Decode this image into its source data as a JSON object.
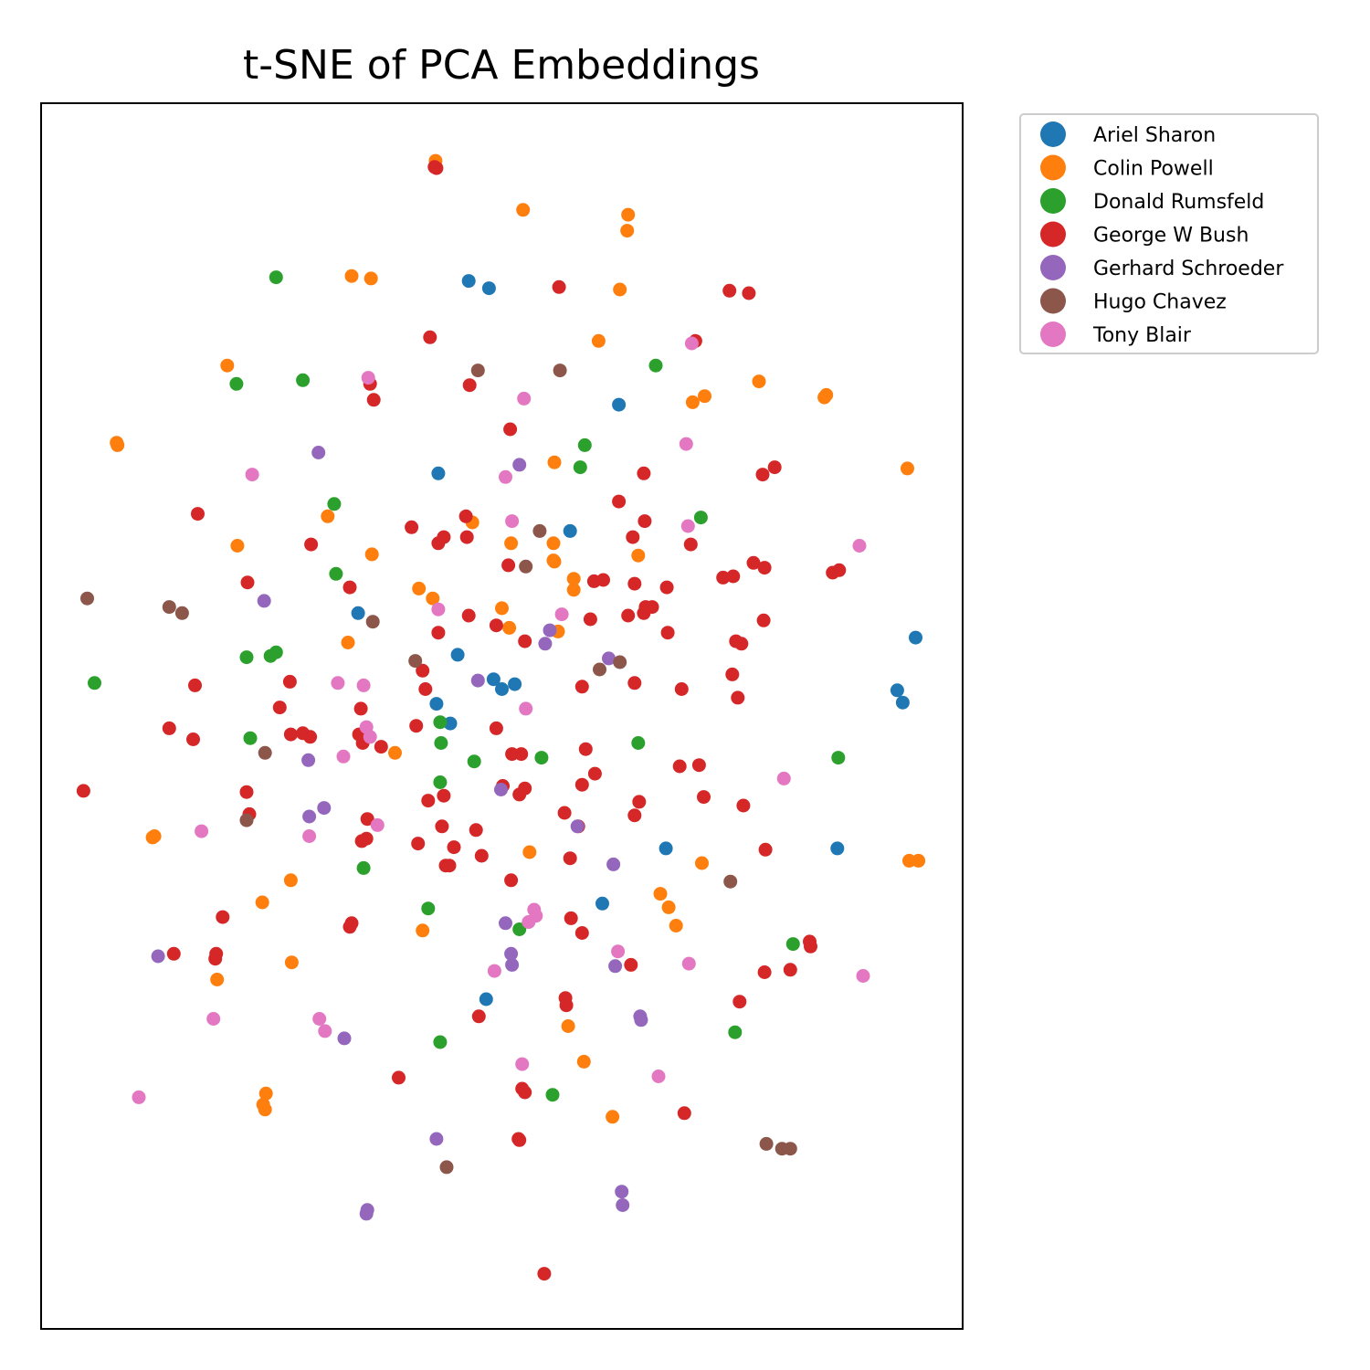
{
  "chart_data": {
    "type": "scatter",
    "title": "t-SNE of PCA Embeddings",
    "xlabel": "",
    "ylabel": "",
    "xlim": [
      0,
      1000
    ],
    "ylim": [
      0,
      1000
    ],
    "ticks_visible": false,
    "grid": false,
    "legend_position": "outside-top-right",
    "series": [
      {
        "name": "Ariel Sharon",
        "color": "#1f77b4",
        "points": [
          [
            464,
            855
          ],
          [
            486,
            849
          ],
          [
            627,
            754
          ],
          [
            431,
            698
          ],
          [
            574,
            651
          ],
          [
            344,
            584
          ],
          [
            949,
            564
          ],
          [
            452,
            550
          ],
          [
            491,
            530
          ],
          [
            514,
            526
          ],
          [
            500,
            522
          ],
          [
            429,
            510
          ],
          [
            444,
            494
          ],
          [
            929,
            521
          ],
          [
            935,
            511
          ],
          [
            678,
            392
          ],
          [
            864,
            392
          ],
          [
            609,
            347
          ],
          [
            483,
            269
          ]
        ]
      },
      {
        "name": "Colin Powell",
        "color": "#ff7f0e",
        "points": [
          [
            428,
            953
          ],
          [
            523,
            913
          ],
          [
            637,
            909
          ],
          [
            636,
            896
          ],
          [
            337,
            859
          ],
          [
            358,
            857
          ],
          [
            628,
            848
          ],
          [
            605,
            806
          ],
          [
            202,
            786
          ],
          [
            779,
            773
          ],
          [
            850,
            760
          ],
          [
            852,
            762
          ],
          [
            720,
            761
          ],
          [
            707,
            756
          ],
          [
            82,
            723
          ],
          [
            83,
            721
          ],
          [
            557,
            707
          ],
          [
            940,
            702
          ],
          [
            311,
            663
          ],
          [
            468,
            658
          ],
          [
            213,
            639
          ],
          [
            359,
            632
          ],
          [
            510,
            641
          ],
          [
            556,
            641
          ],
          [
            556,
            627
          ],
          [
            557,
            626
          ],
          [
            648,
            631
          ],
          [
            578,
            612
          ],
          [
            578,
            603
          ],
          [
            410,
            604
          ],
          [
            425,
            596
          ],
          [
            500,
            588
          ],
          [
            508,
            572
          ],
          [
            561,
            569
          ],
          [
            333,
            560
          ],
          [
            384,
            470
          ],
          [
            530,
            389
          ],
          [
            240,
            348
          ],
          [
            123,
            402
          ],
          [
            121,
            401
          ],
          [
            942,
            382
          ],
          [
            952,
            382
          ],
          [
            717,
            380
          ],
          [
            271,
            366
          ],
          [
            414,
            325
          ],
          [
            672,
            355
          ],
          [
            681,
            344
          ],
          [
            689,
            329
          ],
          [
            272,
            299
          ],
          [
            191,
            285
          ],
          [
            572,
            247
          ],
          [
            589,
            218
          ],
          [
            244,
            192
          ],
          [
            241,
            183
          ],
          [
            243,
            179
          ],
          [
            620,
            173
          ]
        ]
      },
      {
        "name": "Donald Rumsfeld",
        "color": "#2ca02c",
        "points": [
          [
            255,
            858
          ],
          [
            284,
            774
          ],
          [
            212,
            771
          ],
          [
            667,
            786
          ],
          [
            585,
            703
          ],
          [
            590,
            721
          ],
          [
            716,
            662
          ],
          [
            318,
            673
          ],
          [
            320,
            616
          ],
          [
            223,
            548
          ],
          [
            249,
            549
          ],
          [
            255,
            552
          ],
          [
            58,
            527
          ],
          [
            433,
            495
          ],
          [
            434,
            478
          ],
          [
            227,
            482
          ],
          [
            543,
            466
          ],
          [
            648,
            478
          ],
          [
            865,
            466
          ],
          [
            433,
            446
          ],
          [
            470,
            463
          ],
          [
            350,
            376
          ],
          [
            420,
            343
          ],
          [
            519,
            326
          ],
          [
            816,
            314
          ],
          [
            753,
            242
          ],
          [
            433,
            234
          ],
          [
            555,
            191
          ]
        ]
      },
      {
        "name": "George W Bush",
        "color": "#d62728",
        "points": [
          [
            427,
            948
          ],
          [
            562,
            850
          ],
          [
            747,
            847
          ],
          [
            768,
            845
          ],
          [
            710,
            806
          ],
          [
            422,
            809
          ],
          [
            357,
            771
          ],
          [
            465,
            770
          ],
          [
            509,
            734
          ],
          [
            361,
            758
          ],
          [
            654,
            698
          ],
          [
            783,
            697
          ],
          [
            796,
            703
          ],
          [
            170,
            665
          ],
          [
            293,
            640
          ],
          [
            402,
            654
          ],
          [
            461,
            663
          ],
          [
            437,
            646
          ],
          [
            462,
            646
          ],
          [
            627,
            675
          ],
          [
            655,
            659
          ],
          [
            642,
            646
          ],
          [
            431,
            641
          ],
          [
            507,
            623
          ],
          [
            610,
            611
          ],
          [
            600,
            610
          ],
          [
            644,
            608
          ],
          [
            679,
            605
          ],
          [
            751,
            614
          ],
          [
            773,
            625
          ],
          [
            859,
            617
          ],
          [
            866,
            619
          ],
          [
            705,
            640
          ],
          [
            740,
            613
          ],
          [
            785,
            621
          ],
          [
            224,
            609
          ],
          [
            335,
            605
          ],
          [
            596,
            579
          ],
          [
            637,
            582
          ],
          [
            663,
            589
          ],
          [
            680,
            568
          ],
          [
            656,
            589
          ],
          [
            654,
            584
          ],
          [
            784,
            578
          ],
          [
            754,
            561
          ],
          [
            494,
            574
          ],
          [
            525,
            561
          ],
          [
            464,
            582
          ],
          [
            431,
            568
          ],
          [
            414,
            537
          ],
          [
            167,
            525
          ],
          [
            417,
            522
          ],
          [
            587,
            524
          ],
          [
            695,
            522
          ],
          [
            760,
            559
          ],
          [
            750,
            534
          ],
          [
            756,
            515
          ],
          [
            644,
            527
          ],
          [
            270,
            528
          ],
          [
            259,
            507
          ],
          [
            347,
            506
          ],
          [
            271,
            485
          ],
          [
            292,
            483
          ],
          [
            284,
            486
          ],
          [
            165,
            481
          ],
          [
            139,
            490
          ],
          [
            345,
            485
          ],
          [
            349,
            478
          ],
          [
            369,
            475
          ],
          [
            407,
            492
          ],
          [
            494,
            490
          ],
          [
            591,
            473
          ],
          [
            693,
            459
          ],
          [
            714,
            460
          ],
          [
            587,
            444
          ],
          [
            601,
            453
          ],
          [
            501,
            443
          ],
          [
            511,
            469
          ],
          [
            521,
            469
          ],
          [
            525,
            441
          ],
          [
            519,
            436
          ],
          [
            46,
            439
          ],
          [
            223,
            438
          ],
          [
            420,
            431
          ],
          [
            437,
            435
          ],
          [
            649,
            430
          ],
          [
            719,
            434
          ],
          [
            762,
            427
          ],
          [
            354,
            416
          ],
          [
            644,
            419
          ],
          [
            568,
            421
          ],
          [
            226,
            420
          ],
          [
            348,
            398
          ],
          [
            353,
            400
          ],
          [
            435,
            410
          ],
          [
            472,
            407
          ],
          [
            409,
            396
          ],
          [
            583,
            410
          ],
          [
            448,
            393
          ],
          [
            574,
            384
          ],
          [
            478,
            386
          ],
          [
            786,
            391
          ],
          [
            439,
            378
          ],
          [
            443,
            378
          ],
          [
            510,
            366
          ],
          [
            197,
            336
          ],
          [
            335,
            328
          ],
          [
            337,
            331
          ],
          [
            575,
            335
          ],
          [
            587,
            323
          ],
          [
            189,
            302
          ],
          [
            190,
            306
          ],
          [
            144,
            306
          ],
          [
            834,
            316
          ],
          [
            835,
            312
          ],
          [
            640,
            297
          ],
          [
            785,
            291
          ],
          [
            813,
            293
          ],
          [
            758,
            267
          ],
          [
            569,
            270
          ],
          [
            570,
            264
          ],
          [
            475,
            255
          ],
          [
            388,
            205
          ],
          [
            525,
            193
          ],
          [
            522,
            196
          ],
          [
            698,
            176
          ],
          [
            518,
            155
          ],
          [
            519,
            154
          ],
          [
            546,
            45
          ],
          [
            429,
            947
          ]
        ]
      },
      {
        "name": "Gerhard Schroeder",
        "color": "#9467bd",
        "points": [
          [
            301,
            715
          ],
          [
            519,
            705
          ],
          [
            242,
            594
          ],
          [
            552,
            570
          ],
          [
            547,
            559
          ],
          [
            616,
            547
          ],
          [
            474,
            529
          ],
          [
            290,
            464
          ],
          [
            499,
            440
          ],
          [
            582,
            410
          ],
          [
            307,
            425
          ],
          [
            291,
            418
          ],
          [
            621,
            379
          ],
          [
            504,
            331
          ],
          [
            127,
            304
          ],
          [
            510,
            306
          ],
          [
            511,
            297
          ],
          [
            623,
            296
          ],
          [
            650,
            255
          ],
          [
            651,
            252
          ],
          [
            329,
            237
          ],
          [
            429,
            155
          ],
          [
            630,
            112
          ],
          [
            631,
            101
          ],
          [
            354,
            97
          ],
          [
            353,
            94
          ]
        ]
      },
      {
        "name": "Hugo Chavez",
        "color": "#8c564b",
        "points": [
          [
            474,
            782
          ],
          [
            563,
            782
          ],
          [
            541,
            651
          ],
          [
            526,
            622
          ],
          [
            50,
            596
          ],
          [
            139,
            589
          ],
          [
            153,
            584
          ],
          [
            360,
            577
          ],
          [
            406,
            545
          ],
          [
            606,
            538
          ],
          [
            628,
            544
          ],
          [
            243,
            470
          ],
          [
            223,
            415
          ],
          [
            748,
            365
          ],
          [
            787,
            151
          ],
          [
            804,
            147
          ],
          [
            813,
            147
          ],
          [
            440,
            132
          ]
        ]
      },
      {
        "name": "Tony Blair",
        "color": "#e377c2",
        "points": [
          [
            706,
            804
          ],
          [
            355,
            776
          ],
          [
            524,
            759
          ],
          [
            700,
            722
          ],
          [
            229,
            697
          ],
          [
            504,
            695
          ],
          [
            511,
            659
          ],
          [
            702,
            655
          ],
          [
            888,
            639
          ],
          [
            431,
            587
          ],
          [
            565,
            583
          ],
          [
            322,
            527
          ],
          [
            350,
            525
          ],
          [
            526,
            506
          ],
          [
            353,
            491
          ],
          [
            357,
            483
          ],
          [
            328,
            467
          ],
          [
            806,
            449
          ],
          [
            174,
            406
          ],
          [
            365,
            411
          ],
          [
            291,
            402
          ],
          [
            535,
            342
          ],
          [
            537,
            337
          ],
          [
            529,
            332
          ],
          [
            626,
            308
          ],
          [
            703,
            298
          ],
          [
            492,
            292
          ],
          [
            892,
            288
          ],
          [
            187,
            253
          ],
          [
            302,
            253
          ],
          [
            308,
            243
          ],
          [
            522,
            216
          ],
          [
            670,
            206
          ],
          [
            106,
            189
          ]
        ]
      }
    ]
  }
}
